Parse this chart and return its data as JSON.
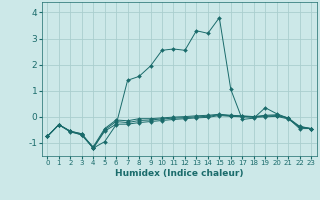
{
  "xlabel": "Humidex (Indice chaleur)",
  "background_color": "#cce8e8",
  "grid_color": "#aacece",
  "line_color": "#1a6b6b",
  "xlim": [
    -0.5,
    23.5
  ],
  "ylim": [
    -1.5,
    4.4
  ],
  "yticks": [
    -1,
    0,
    1,
    2,
    3,
    4
  ],
  "xticks": [
    0,
    1,
    2,
    3,
    4,
    5,
    6,
    7,
    8,
    9,
    10,
    11,
    12,
    13,
    14,
    15,
    16,
    17,
    18,
    19,
    20,
    21,
    22,
    23
  ],
  "series": [
    {
      "x": [
        0,
        1,
        2,
        3,
        4,
        5,
        6,
        7,
        8,
        9,
        10,
        11,
        12,
        13,
        14,
        15,
        16,
        17,
        18,
        19,
        20,
        21,
        22,
        23
      ],
      "y": [
        -0.75,
        -0.3,
        -0.55,
        -0.65,
        -1.2,
        -0.95,
        -0.3,
        1.4,
        1.55,
        1.95,
        2.55,
        2.6,
        2.55,
        3.3,
        3.2,
        3.8,
        1.05,
        -0.1,
        -0.05,
        0.35,
        0.12,
        -0.05,
        -0.45,
        -0.45
      ]
    },
    {
      "x": [
        0,
        1,
        2,
        3,
        4,
        5,
        6,
        7,
        8,
        9,
        10,
        11,
        12,
        13,
        14,
        15,
        16,
        17,
        18,
        19,
        20,
        21,
        22,
        23
      ],
      "y": [
        -0.75,
        -0.3,
        -0.55,
        -0.7,
        -1.2,
        -0.55,
        -0.28,
        -0.28,
        -0.22,
        -0.18,
        -0.14,
        -0.1,
        -0.07,
        -0.04,
        -0.02,
        0.05,
        0.02,
        0.0,
        -0.02,
        0.0,
        0.02,
        -0.08,
        -0.38,
        -0.45
      ]
    },
    {
      "x": [
        0,
        1,
        2,
        3,
        4,
        5,
        6,
        7,
        8,
        9,
        10,
        11,
        12,
        13,
        14,
        15,
        16,
        17,
        18,
        19,
        20,
        21,
        22,
        23
      ],
      "y": [
        -0.75,
        -0.3,
        -0.55,
        -0.65,
        -1.2,
        -0.5,
        -0.18,
        -0.22,
        -0.14,
        -0.12,
        -0.08,
        -0.05,
        -0.03,
        0.0,
        0.02,
        0.08,
        0.04,
        0.02,
        0.0,
        0.03,
        0.05,
        -0.05,
        -0.4,
        -0.45
      ]
    },
    {
      "x": [
        0,
        1,
        2,
        3,
        4,
        5,
        6,
        7,
        8,
        9,
        10,
        11,
        12,
        13,
        14,
        15,
        16,
        17,
        18,
        19,
        20,
        21,
        22,
        23
      ],
      "y": [
        -0.75,
        -0.3,
        -0.58,
        -0.68,
        -1.15,
        -0.45,
        -0.12,
        -0.15,
        -0.07,
        -0.07,
        -0.04,
        -0.01,
        0.01,
        0.04,
        0.06,
        0.1,
        0.06,
        0.04,
        0.01,
        0.06,
        0.08,
        -0.04,
        -0.36,
        -0.45
      ]
    }
  ]
}
